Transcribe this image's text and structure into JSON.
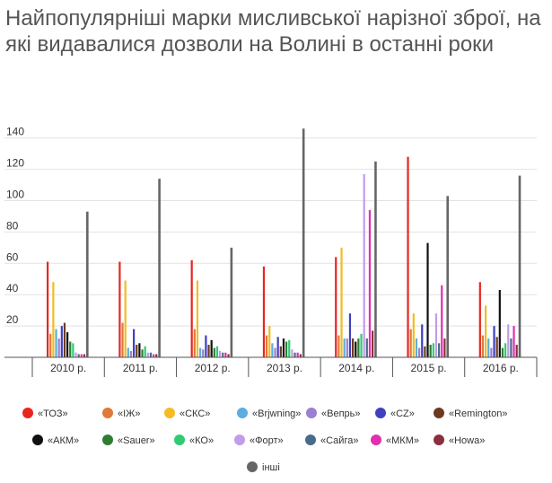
{
  "title": "Найпопулярніші марки мисливської нарізної зброї, на які видавалися дозволи на Волині в останні роки",
  "chart_data": {
    "type": "bar",
    "title": "Найпопулярніші марки мисливської нарізної зброї, на які видавалися дозволи на Волині в останні роки",
    "xlabel": "",
    "ylabel": "",
    "ylim": [
      0,
      145
    ],
    "yticks": [
      20,
      40,
      60,
      80,
      100,
      120,
      140
    ],
    "ytick_labels": [
      "20",
      "40",
      "60",
      "80",
      "100",
      "120",
      "140"
    ],
    "grid": true,
    "legend_position": "bottom",
    "categories": [
      "2010 р.",
      "2011 р.",
      "2012 р.",
      "2013 р.",
      "2014 р.",
      "2015 р.",
      "2016 р."
    ],
    "series": [
      {
        "name": "«ТОЗ»",
        "color": "#e8251f",
        "values": [
          61,
          61,
          62,
          58,
          64,
          128,
          48
        ]
      },
      {
        "name": "«ІЖ»",
        "color": "#e07a3a",
        "values": [
          15,
          22,
          18,
          14,
          14,
          18,
          14
        ]
      },
      {
        "name": "«СКС»",
        "color": "#f2bc22",
        "values": [
          48,
          49,
          49,
          20,
          70,
          28,
          33
        ]
      },
      {
        "name": "«Brjwning»",
        "color": "#5aaee0",
        "values": [
          18,
          6,
          6,
          9,
          12,
          12,
          12
        ]
      },
      {
        "name": "«Вепрь»",
        "color": "#9b7fd0",
        "values": [
          12,
          4,
          5,
          6,
          12,
          6,
          6
        ]
      },
      {
        "name": "«CZ»",
        "color": "#3f3fc0",
        "values": [
          20,
          18,
          14,
          13,
          28,
          21,
          20
        ]
      },
      {
        "name": "«Remington»",
        "color": "#6b3a1f",
        "values": [
          22,
          8,
          8,
          7,
          12,
          7,
          13
        ]
      },
      {
        "name": "«АКМ»",
        "color": "#111111",
        "values": [
          16,
          9,
          11,
          12,
          10,
          73,
          43
        ]
      },
      {
        "name": "«Sauer»",
        "color": "#2e7d32",
        "values": [
          10,
          5,
          6,
          10,
          12,
          8,
          6
        ]
      },
      {
        "name": "«КО»",
        "color": "#2ecc71",
        "values": [
          9,
          7,
          7,
          11,
          15,
          9,
          9
        ]
      },
      {
        "name": "«Форт»",
        "color": "#c39be8",
        "values": [
          3,
          3,
          4,
          5,
          117,
          28,
          21
        ]
      },
      {
        "name": "«Сайга»",
        "color": "#4a6b8a",
        "values": [
          2,
          3,
          3,
          3,
          12,
          9,
          12
        ]
      },
      {
        "name": "«МКМ»",
        "color": "#e030b0",
        "values": [
          2,
          2,
          3,
          3,
          94,
          46,
          20
        ]
      },
      {
        "name": "«Howa»",
        "color": "#8b2f3f",
        "values": [
          2,
          2,
          2,
          2,
          17,
          12,
          8
        ]
      },
      {
        "name": "інші",
        "color": "#666666",
        "values": [
          93,
          114,
          70,
          146,
          125,
          103,
          116
        ]
      }
    ]
  }
}
